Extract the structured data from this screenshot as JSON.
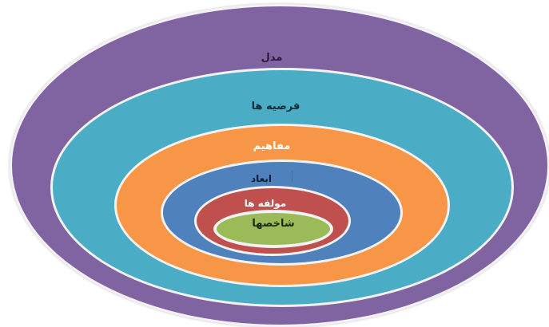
{
  "diagram": {
    "type": "nested-ellipses",
    "layers": [
      {
        "key": "model",
        "label": "مدل",
        "color": "#8064a2"
      },
      {
        "key": "hypotheses",
        "label": "فرضیه ها",
        "color": "#4bacc6"
      },
      {
        "key": "concepts",
        "label": "مفاهیم",
        "color": "#f79646"
      },
      {
        "key": "dimensions",
        "label": "ابعاد",
        "color": "#4f81bd"
      },
      {
        "key": "components",
        "label": "مولفه ها",
        "color": "#c0504d"
      },
      {
        "key": "indicators",
        "label": "شاخصها",
        "color": "#9bbb59"
      }
    ]
  }
}
